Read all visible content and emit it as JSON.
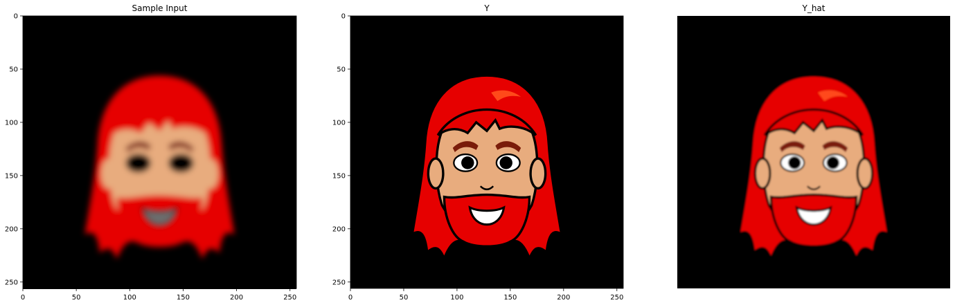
{
  "chart_data": [
    {
      "type": "image",
      "title": "Sample Input",
      "image_description": "blurry, low-resolution cartoon emoji face: red long hair, red beard, tan skin, black eyes, grey mouth, on black background",
      "x_range": [
        0,
        256
      ],
      "y_range": [
        0,
        256
      ],
      "y_inverted": true,
      "x_ticks": [
        0,
        50,
        100,
        150,
        200,
        250
      ],
      "y_ticks": [
        0,
        50,
        100,
        150,
        200,
        250
      ],
      "axes_visible": true
    },
    {
      "type": "image",
      "title": "Y",
      "image_description": "sharp cartoon emoji face with black outlines: red long hair with orange highlight, red beard, tan skin, brown eyebrows, white eyes with black pupils, open smiling mouth, on black background",
      "x_range": [
        0,
        256
      ],
      "y_range": [
        0,
        256
      ],
      "y_inverted": true,
      "x_ticks": [
        0,
        50,
        100,
        150,
        200,
        250
      ],
      "y_ticks": [
        0,
        50,
        100,
        150,
        200,
        250
      ],
      "axes_visible": true
    },
    {
      "type": "image",
      "title": "Y_hat",
      "image_description": "slightly soft reconstruction of the cartoon emoji face with outlines, red hair, red beard, tan skin, eyes and smiling mouth, on black background",
      "axes_visible": false
    }
  ],
  "colors": {
    "background": "#000000",
    "hair": "#e60000",
    "hair_highlight": "#ff4a1a",
    "skin": "#e8ac7e",
    "brow": "#7a1c0a",
    "outline": "#000000"
  }
}
